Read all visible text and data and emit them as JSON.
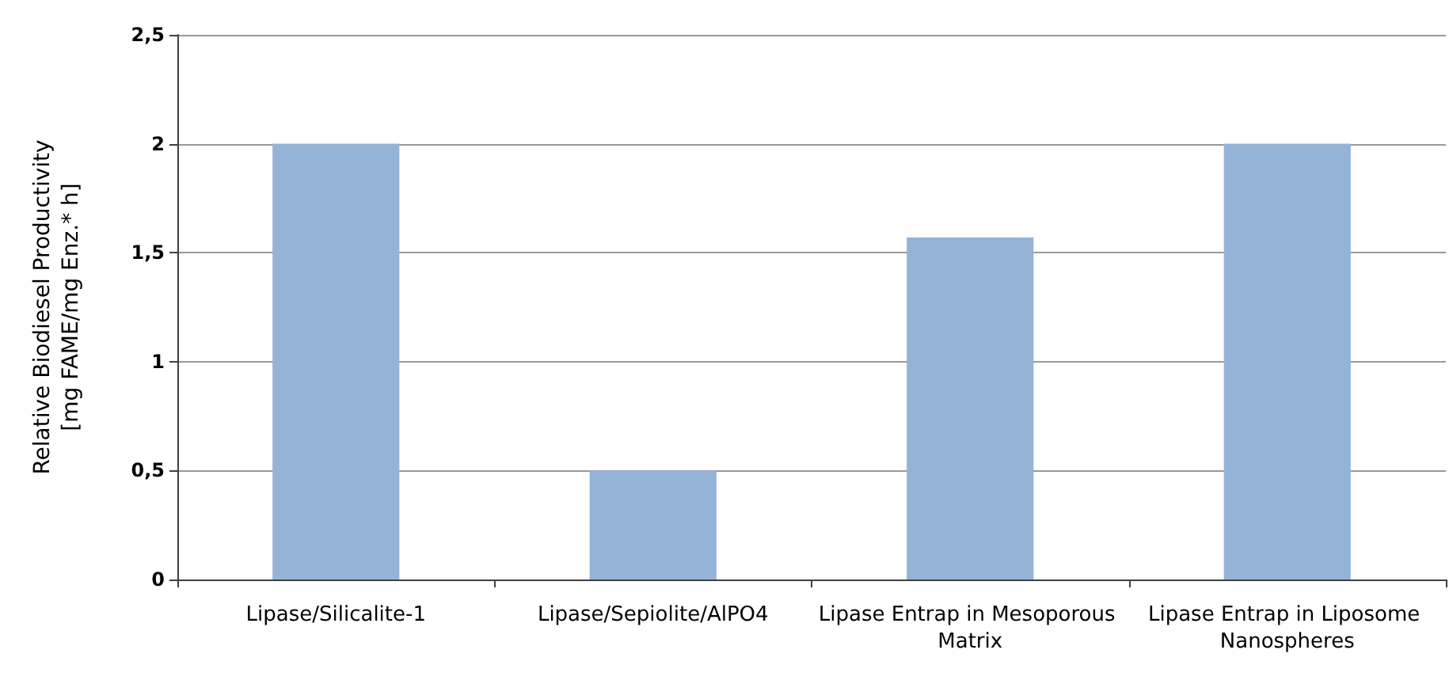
{
  "chart_data": {
    "type": "bar",
    "ylabel": "Relative Biodiesel Productivity\n[mg FAME/mg Enz.* h]",
    "categories": [
      "Lipase/Silicalite-1",
      "Lipase/Sepiolite/AlPO4",
      "Lipase Entrap in Mesoporous Matrix",
      "Lipase Entrap in Liposome Nanospheres"
    ],
    "values": [
      2,
      0.5,
      1.57,
      2
    ],
    "color": "#95b3d7",
    "ylim": [
      0,
      2.5
    ],
    "yticks": [
      0,
      {
        "value": 0.5,
        "label": "0,5"
      },
      1,
      {
        "value": 1.5,
        "label": "1,5"
      },
      2,
      {
        "value": 2.5,
        "label": "2,5"
      }
    ],
    "grid": "y"
  }
}
